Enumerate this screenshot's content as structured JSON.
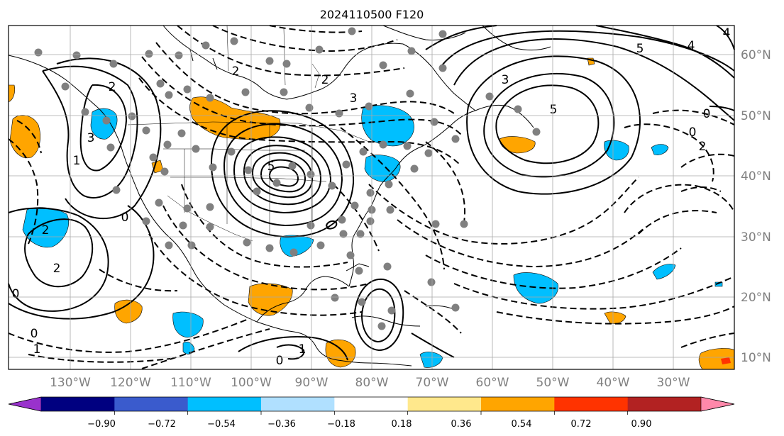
{
  "title": "2024110500 F120",
  "lon_labels": [
    "130°W",
    "120°W",
    "110°W",
    "100°W",
    "90°W",
    "80°W",
    "70°W",
    "60°W",
    "50°W",
    "40°W",
    "30°W"
  ],
  "lat_labels": [
    "60°N",
    "50°N",
    "40°N",
    "30°N",
    "20°N",
    "10°N"
  ],
  "contour_labels": [
    "4",
    "5",
    "5",
    "3",
    "3",
    "2",
    "2",
    "2",
    "0",
    "0",
    "0",
    "1",
    "0",
    "0",
    "1",
    "1",
    "0",
    "2",
    "5",
    "2",
    "4",
    "3",
    "2"
  ],
  "colorbar": {
    "ticks": [
      "−0.90",
      "−0.72",
      "−0.54",
      "−0.36",
      "−0.18",
      "0.18",
      "0.36",
      "0.54",
      "0.72",
      "0.90"
    ],
    "colors": [
      "#9932cc",
      "#000080",
      "#3a5bcd",
      "#00bfff",
      "#b0e0ff",
      "#ffffff",
      "#ffe88c",
      "#ffa500",
      "#ff3300",
      "#b22222",
      "#ff88aa"
    ]
  },
  "colors": {
    "neg_fill": "#00bfff",
    "pos_fill": "#ffa500",
    "grid": "#a9a9a9",
    "station": "#808080"
  }
}
